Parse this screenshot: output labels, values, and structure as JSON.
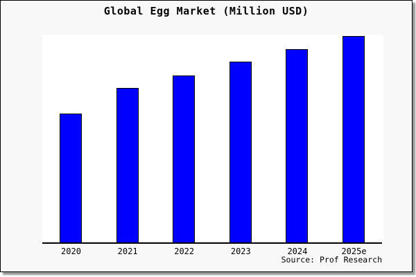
{
  "title": "Global Egg Market (Million USD)",
  "source_note": "Source: Prof Research",
  "colors": {
    "bar_fill": "#0000ff",
    "bar_edge": "#000000",
    "figure_background": "#f8f8f8",
    "plot_background": "#ffffff",
    "figure_border": "#000000",
    "drop_shadow": "#999999",
    "text": "#000000"
  },
  "chart_data": {
    "type": "bar",
    "title": "Global Egg Market (Million USD)",
    "categories": [
      "2020",
      "2021",
      "2022",
      "2023",
      "2024",
      "2025e"
    ],
    "values": [
      62.7,
      75.0,
      81.3,
      87.7,
      93.8,
      100.0
    ],
    "value_note": "no y-axis shown; values estimated as percent of tallest (2025e) bar",
    "xlabel": "",
    "ylabel": "",
    "ylim": [
      0,
      100.5
    ],
    "grid": false,
    "legend": false,
    "source_note": "Source: Prof Research"
  }
}
